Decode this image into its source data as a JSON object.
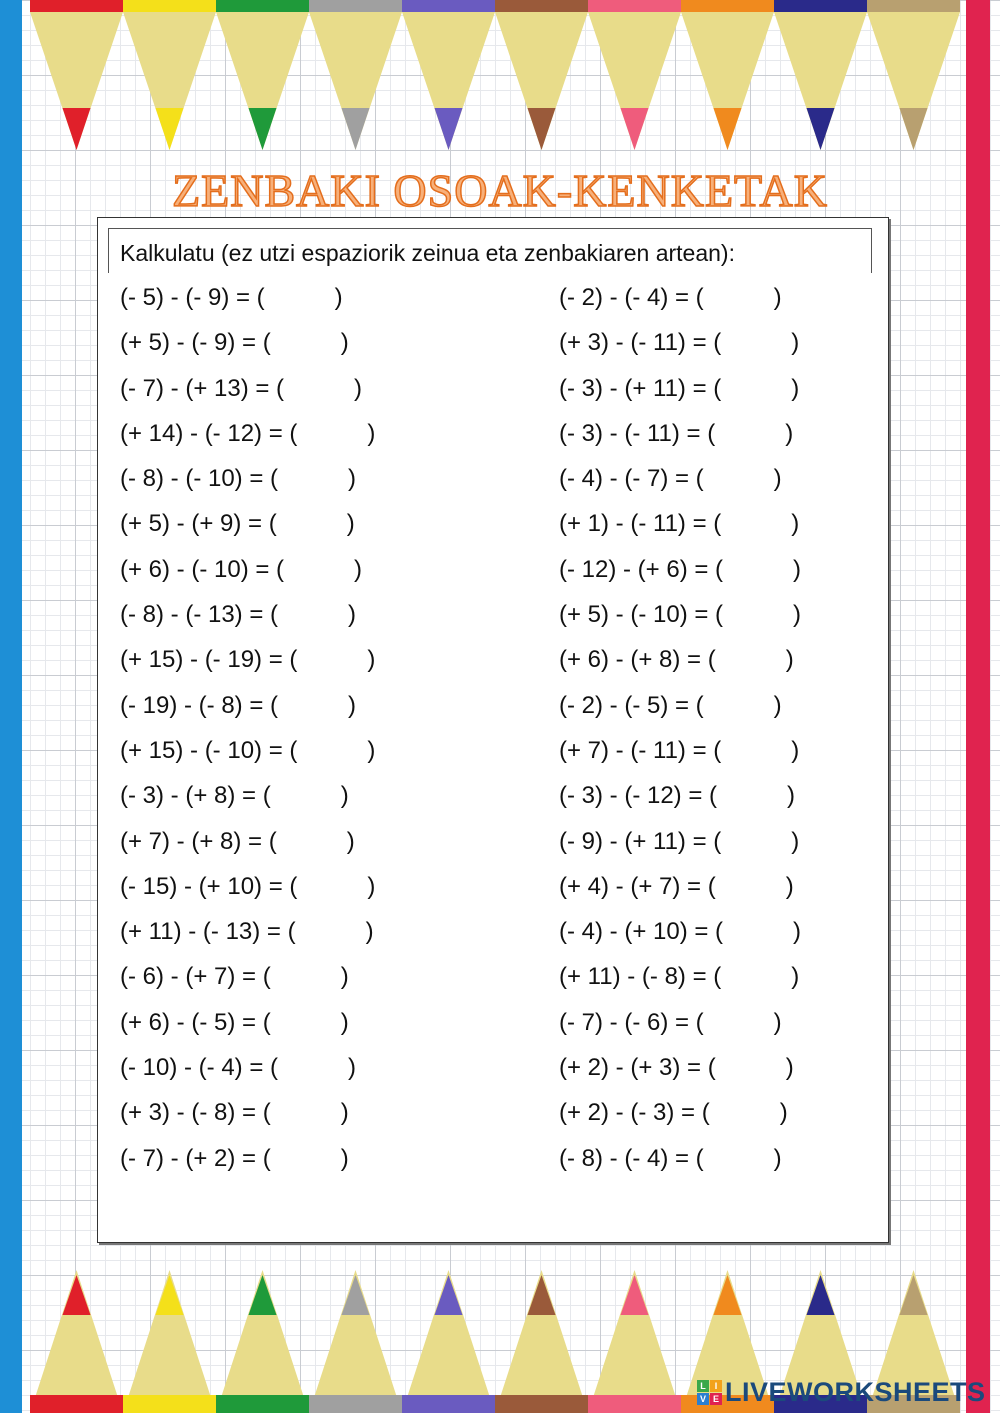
{
  "title": "ZENBAKI OSOAK-KENKETAK",
  "instruction": "Kalkulatu (ez utzi espaziorik zeinua eta zenbakiaren artean):",
  "left": [
    "(- 5) - (- 9) = (",
    "(+ 5) - (- 9) = (",
    "(- 7) - (+ 13) = (",
    "(+ 14) - (- 12) = (",
    "(- 8) - (- 10) = (",
    "(+ 5) - (+ 9) = (",
    "(+ 6) - (- 10) = (",
    "(- 8) - (- 13) = (",
    "(+ 15) - (- 19) = (",
    "(- 19) - (- 8) = (",
    "(+ 15) - (- 10) = (",
    "(- 3) - (+ 8) = (",
    "(+ 7) - (+ 8) = (",
    "(- 15) - (+ 10) = (",
    "(+ 11) - (- 13) = (",
    "(- 6) - (+ 7) = (",
    "(+ 6) - (- 5) = (",
    "(- 10) - (- 4) = (",
    "(+ 3) - (- 8) = (",
    "(- 7) - (+ 2) = ("
  ],
  "right": [
    "(- 2) - (- 4) = (",
    "(+ 3) - (- 11) = (",
    "(- 3) - (+ 11) = (",
    "(- 3) - (- 11) = (",
    "(- 4) - (- 7) = (",
    "(+ 1) - (- 11) = (",
    "(- 12) - (+ 6) = (",
    "(+ 5) - (- 10) = (",
    "(+ 6) - (+ 8) = (",
    "(- 2) - (- 5) = (",
    "(+ 7) - (- 11) = (",
    "(- 3) - (- 12) = (",
    "(- 9) - (+ 11) = (",
    "(+ 4) - (+ 7) = (",
    "(- 4) - (+ 10) = (",
    "(+ 11) - (- 8) = (",
    "(- 7) - (- 6) = (",
    "(+ 2) - (+ 3) = (",
    "(+ 2) - (- 3) = (",
    "(- 8) - (- 4) = ("
  ],
  "close_paren": ")",
  "logo": {
    "text": "LIVEWORKSHEETS",
    "mark": [
      "L",
      "I",
      "V",
      "E"
    ],
    "mark_colors": [
      "#3aa84a",
      "#f2a21b",
      "#2b7fd0",
      "#e0234f"
    ]
  },
  "pencil_colors": [
    "#e0202a",
    "#f4e01a",
    "#1f9a3a",
    "#a0a0a0",
    "#6a5bc0",
    "#9a5a3a",
    "#ef5c7c",
    "#f08a1e",
    "#2a2a8a",
    "#b8a070"
  ],
  "colors": {
    "title": "#e46e1d",
    "band_left": "#1e8fd6",
    "band_right": "#e0234f"
  }
}
